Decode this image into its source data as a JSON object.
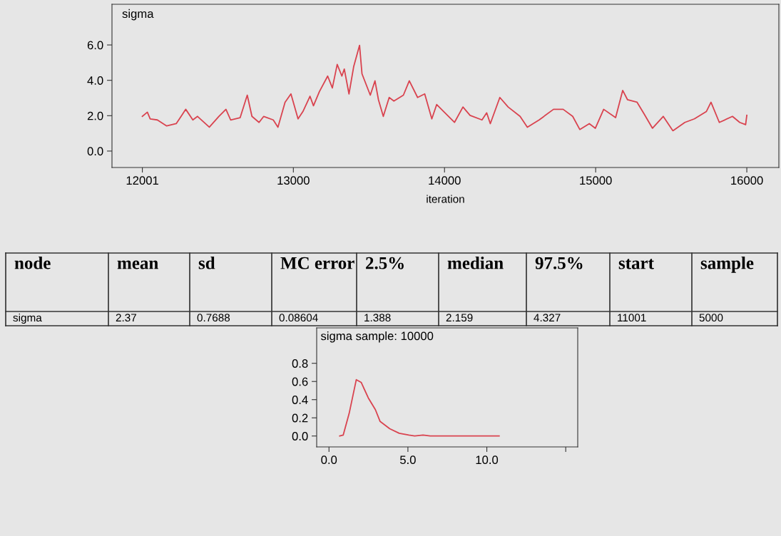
{
  "chart_data": [
    {
      "type": "line",
      "title": "sigma",
      "xlabel": "iteration",
      "xlim": [
        11800,
        16212
      ],
      "xticks": [
        12001,
        13000,
        14000,
        15000,
        16000
      ],
      "ylim": [
        -0.93,
        8.3
      ],
      "yticks": [
        {
          "value": 0,
          "label": "0.0"
        },
        {
          "value": 2,
          "label": "2.0"
        },
        {
          "value": 4,
          "label": "4.0"
        },
        {
          "value": 6,
          "label": "6.0"
        }
      ],
      "grid": false,
      "legend": false,
      "series": [
        {
          "color": "#d9434f",
          "x": [
            12001,
            12034,
            12053,
            12100,
            12162,
            12225,
            12288,
            12335,
            12366,
            12444,
            12507,
            12554,
            12585,
            12648,
            12695,
            12726,
            12773,
            12804,
            12867,
            12898,
            12945,
            12984,
            13031,
            13063,
            13110,
            13133,
            13172,
            13227,
            13258,
            13290,
            13321,
            13337,
            13368,
            13399,
            13438,
            13454,
            13509,
            13540,
            13563,
            13595,
            13634,
            13665,
            13728,
            13767,
            13822,
            13869,
            13916,
            13948,
            13995,
            14066,
            14122,
            14169,
            14248,
            14279,
            14303,
            14366,
            14421,
            14500,
            14548,
            14626,
            14721,
            14785,
            14848,
            14895,
            14958,
            14998,
            15053,
            15132,
            15179,
            15211,
            15274,
            15321,
            15376,
            15447,
            15511,
            15590,
            15653,
            15732,
            15763,
            15818,
            15905,
            15953,
            15992,
            16000
          ],
          "values": [
            1.96,
            2.2,
            1.82,
            1.76,
            1.42,
            1.55,
            2.36,
            1.76,
            1.96,
            1.35,
            1.96,
            2.36,
            1.76,
            1.89,
            3.16,
            1.96,
            1.62,
            1.96,
            1.76,
            1.35,
            2.76,
            3.23,
            1.82,
            2.23,
            3.1,
            2.56,
            3.36,
            4.24,
            3.57,
            4.9,
            4.24,
            4.64,
            3.23,
            4.77,
            5.98,
            4.37,
            3.16,
            3.97,
            2.9,
            1.96,
            3.03,
            2.83,
            3.16,
            3.97,
            3.03,
            3.23,
            1.82,
            2.63,
            2.23,
            1.62,
            2.49,
            2.02,
            1.76,
            2.16,
            1.55,
            3.03,
            2.49,
            1.96,
            1.35,
            1.76,
            2.36,
            2.36,
            1.96,
            1.22,
            1.55,
            1.29,
            2.36,
            1.89,
            3.43,
            2.9,
            2.76,
            2.09,
            1.29,
            1.96,
            1.15,
            1.62,
            1.82,
            2.23,
            2.76,
            1.62,
            1.96,
            1.62,
            1.49,
            2.02
          ]
        }
      ]
    },
    {
      "type": "other",
      "categories": [
        "node",
        "mean",
        "sd",
        "MC error",
        "2.5%",
        "median",
        "97.5%",
        "start",
        "sample"
      ],
      "cell_labels": [
        [
          "sigma",
          "2.37",
          "0.7688",
          "0.08604",
          "1.388",
          "2.159",
          "4.327",
          "11001",
          "5000"
        ]
      ]
    },
    {
      "type": "line",
      "title": "sigma sample: 10000",
      "xlim": [
        -0.78,
        15.76
      ],
      "xticks": [
        {
          "value": 0,
          "label": "0.0"
        },
        {
          "value": 5,
          "label": "5.0"
        },
        {
          "value": 10,
          "label": "10.0"
        },
        {
          "value": 15,
          "label": null
        }
      ],
      "ylim": [
        -0.12,
        1.19
      ],
      "yticks": [
        {
          "value": 0,
          "label": "0.0"
        },
        {
          "value": 0.2,
          "label": "0.2"
        },
        {
          "value": 0.4,
          "label": "0.4"
        },
        {
          "value": 0.6,
          "label": "0.6"
        },
        {
          "value": 0.8,
          "label": "0.8"
        }
      ],
      "grid": false,
      "legend": false,
      "series": [
        {
          "color": "#d9434f",
          "x": [
            0.68,
            0.9,
            1.28,
            1.73,
            2.04,
            2.49,
            2.94,
            3.24,
            3.85,
            4.45,
            5.06,
            5.43,
            5.96,
            6.41,
            7.77,
            10.78
          ],
          "values": [
            0.0,
            0.01,
            0.25,
            0.62,
            0.59,
            0.42,
            0.29,
            0.16,
            0.08,
            0.03,
            0.01,
            0.0,
            0.01,
            0.0,
            0.0,
            0.0
          ]
        }
      ]
    }
  ]
}
